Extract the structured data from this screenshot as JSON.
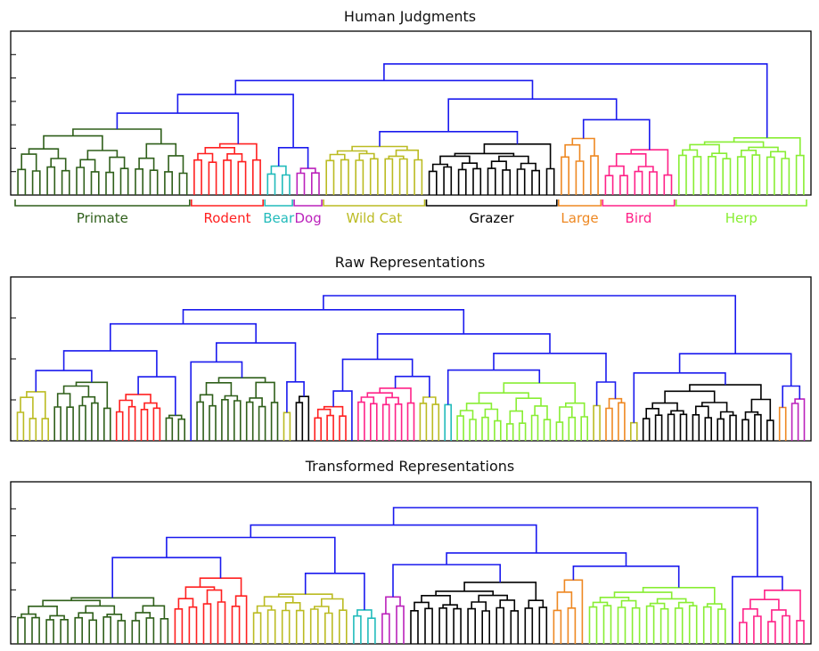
{
  "panels": [
    {
      "title": "Human Judgments",
      "groups": [
        {
          "name": "Primate",
          "color": "#2f5f1a",
          "leaves": 24
        },
        {
          "name": "Rodent",
          "color": "#ff2020",
          "leaves": 10
        },
        {
          "name": "Bear",
          "color": "#22bbbb",
          "leaves": 4
        },
        {
          "name": "Dog",
          "color": "#bb22bb",
          "leaves": 4
        },
        {
          "name": "Wild Cat",
          "color": "#bbbb22",
          "leaves": 14
        },
        {
          "name": "Grazer",
          "color": "#000000",
          "leaves": 18
        },
        {
          "name": "Large",
          "color": "#ee8822",
          "leaves": 6
        },
        {
          "name": "Bird",
          "color": "#ff2288",
          "leaves": 10
        },
        {
          "name": "Herp",
          "color": "#88ee33",
          "leaves": 18
        }
      ]
    },
    {
      "title": "Raw Representations",
      "groups": [
        {
          "name": "",
          "color": "#bbbb22",
          "leaves": 6
        },
        {
          "name": "",
          "color": "#2f5f1a",
          "leaves": 10
        },
        {
          "name": "",
          "color": "#ff2020",
          "leaves": 8
        },
        {
          "name": "",
          "color": "#2f5f1a",
          "leaves": 4
        },
        {
          "name": "",
          "color": "#22bbbb",
          "leaves": 1
        },
        {
          "name": "",
          "color": "#2f5f1a",
          "leaves": 14
        },
        {
          "name": "",
          "color": "#bbbb22",
          "leaves": 2
        },
        {
          "name": "",
          "color": "#000000",
          "leaves": 3
        },
        {
          "name": "",
          "color": "#ff2020",
          "leaves": 6
        },
        {
          "name": "",
          "color": "#000000",
          "leaves": 1
        },
        {
          "name": "",
          "color": "#ff2288",
          "leaves": 10
        },
        {
          "name": "",
          "color": "#bbbb22",
          "leaves": 4
        },
        {
          "name": "",
          "color": "#22bbbb",
          "leaves": 2
        },
        {
          "name": "",
          "color": "#88ee33",
          "leaves": 22
        },
        {
          "name": "",
          "color": "#bbbb22",
          "leaves": 2
        },
        {
          "name": "",
          "color": "#ee8822",
          "leaves": 4
        },
        {
          "name": "",
          "color": "#bbbb22",
          "leaves": 2
        },
        {
          "name": "",
          "color": "#000000",
          "leaves": 22
        },
        {
          "name": "",
          "color": "#ee8822",
          "leaves": 2
        },
        {
          "name": "",
          "color": "#bb22bb",
          "leaves": 3
        }
      ]
    },
    {
      "title": "Transformed Representations",
      "groups": [
        {
          "name": "",
          "color": "#2f5f1a",
          "leaves": 22
        },
        {
          "name": "",
          "color": "#ff2020",
          "leaves": 11
        },
        {
          "name": "",
          "color": "#bbbb22",
          "leaves": 14
        },
        {
          "name": "",
          "color": "#22bbbb",
          "leaves": 4
        },
        {
          "name": "",
          "color": "#bb22bb",
          "leaves": 4
        },
        {
          "name": "",
          "color": "#000000",
          "leaves": 20
        },
        {
          "name": "",
          "color": "#ee8822",
          "leaves": 5
        },
        {
          "name": "",
          "color": "#88ee33",
          "leaves": 20
        },
        {
          "name": "",
          "color": "#ee8822",
          "leaves": 1
        },
        {
          "name": "",
          "color": "#ff2288",
          "leaves": 10
        }
      ]
    }
  ],
  "link_color": "#1a1aee"
}
